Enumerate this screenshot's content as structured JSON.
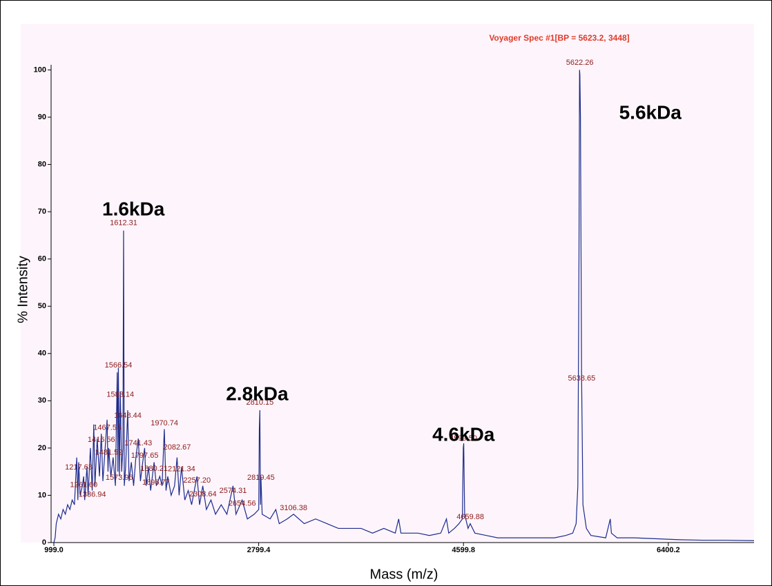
{
  "chart_data": {
    "type": "line",
    "title": "Voyager Spec #1[BP = 5623.2, 3448]",
    "title_color": "#e03a2a",
    "x_label": "Mass (m/z)",
    "y_label": "% Intensity",
    "color": "#1c2a8c",
    "label_color": "#8b1a1a",
    "xlim": [
      999.0,
      7154
    ],
    "ylim": [
      0,
      104
    ],
    "xticks": [
      {
        "value": 999.0,
        "label": "999.0"
      },
      {
        "value": 2799.4,
        "label": "2799.4"
      },
      {
        "value": 4599.8,
        "label": "4599.8"
      },
      {
        "value": 6400.2,
        "label": "6400.2"
      }
    ],
    "yticks": [
      0,
      10,
      20,
      30,
      40,
      50,
      60,
      70,
      80,
      90,
      100
    ],
    "x": [
      999,
      1010,
      1020,
      1040,
      1060,
      1080,
      1100,
      1120,
      1140,
      1160,
      1180,
      1200,
      1210,
      1217,
      1230,
      1250,
      1261,
      1270,
      1290,
      1300,
      1320,
      1336,
      1350,
      1360,
      1380,
      1400,
      1416,
      1430,
      1450,
      1467,
      1475,
      1481,
      1500,
      1520,
      1540,
      1556,
      1562,
      1566,
      1575,
      1583,
      1595,
      1606,
      1612,
      1618,
      1630,
      1648,
      1660,
      1680,
      1700,
      1720,
      1741,
      1760,
      1780,
      1797,
      1810,
      1830,
      1850,
      1880,
      1900,
      1930,
      1950,
      1970,
      1985,
      2000,
      2030,
      2060,
      2082,
      2100,
      2121,
      2150,
      2180,
      2210,
      2257,
      2280,
      2308,
      2340,
      2380,
      2420,
      2470,
      2520,
      2574,
      2600,
      2654,
      2700,
      2760,
      2800,
      2805,
      2810,
      2815,
      2819,
      2830,
      2900,
      2950,
      2980,
      3050,
      3106,
      3200,
      3300,
      3400,
      3500,
      3600,
      3700,
      3800,
      3900,
      4000,
      4030,
      4050,
      4200,
      4300,
      4400,
      4450,
      4470,
      4520,
      4560,
      4590,
      4598,
      4602,
      4610,
      4640,
      4659,
      4700,
      4800,
      4900,
      5000,
      5100,
      5200,
      5300,
      5400,
      5500,
      5560,
      5590,
      5605,
      5615,
      5620,
      5623,
      5628,
      5638,
      5650,
      5680,
      5720,
      5850,
      5880,
      5890,
      5900,
      5950,
      6100,
      6300,
      6500,
      6700,
      6900,
      7154
    ],
    "values": [
      0,
      1,
      4,
      6,
      5,
      7,
      6,
      8,
      7,
      9,
      8,
      18,
      9,
      17,
      10,
      12,
      14,
      9,
      16,
      10,
      20,
      11,
      25,
      12,
      22,
      14,
      23,
      13,
      20,
      26,
      15,
      20,
      14,
      18,
      12,
      36,
      15,
      37,
      14,
      32,
      15,
      20,
      66,
      12,
      16,
      28,
      13,
      17,
      12,
      18,
      22,
      13,
      17,
      20,
      12,
      16,
      11,
      17,
      12,
      14,
      12,
      24,
      11,
      14,
      10,
      12,
      18,
      10,
      16,
      9,
      11,
      8,
      14,
      8,
      12,
      7,
      9,
      6,
      8,
      6,
      12,
      6,
      9,
      5,
      6,
      7,
      24,
      28,
      8,
      14,
      6,
      5,
      7,
      4,
      5,
      6,
      4,
      5,
      4,
      3,
      3,
      3,
      2,
      3,
      2,
      5,
      2,
      2,
      1.5,
      2,
      5,
      2,
      3,
      4,
      5,
      20,
      21,
      6,
      3,
      4,
      2,
      1.5,
      1,
      1,
      1,
      1,
      1,
      1,
      1.5,
      2,
      4,
      12,
      60,
      100,
      99,
      90,
      35,
      8,
      3,
      1.5,
      1,
      4,
      5,
      2,
      1,
      1,
      0.8,
      0.6,
      0.5,
      0.5,
      0.4
    ],
    "peak_labels": [
      {
        "x": 1612.31,
        "y": 67.6,
        "label": "1612.31"
      },
      {
        "x": 1566.54,
        "y": 37.5,
        "label": "1566.54"
      },
      {
        "x": 1583.14,
        "y": 31.3,
        "label": "1583.14"
      },
      {
        "x": 1648.44,
        "y": 26.8,
        "label": "1648.44"
      },
      {
        "x": 1467.53,
        "y": 24.3,
        "label": "1467.53"
      },
      {
        "x": 1416.56,
        "y": 21.7,
        "label": "1416.56"
      },
      {
        "x": 1481.52,
        "y": 19.0,
        "label": "1481.52"
      },
      {
        "x": 1217.63,
        "y": 15.9,
        "label": "1217.63"
      },
      {
        "x": 1573.96,
        "y": 13.7,
        "label": "1573.96"
      },
      {
        "x": 1261.6,
        "y": 12.2,
        "label": "1261.60"
      },
      {
        "x": 1336.94,
        "y": 10.1,
        "label": "1336.94"
      },
      {
        "x": 1970.74,
        "y": 25.2,
        "label": "1970.74"
      },
      {
        "x": 1741.43,
        "y": 21.0,
        "label": "1741.43"
      },
      {
        "x": 1797.65,
        "y": 18.4,
        "label": "1797.65"
      },
      {
        "x": 2082.67,
        "y": 20.1,
        "label": "2082.67"
      },
      {
        "x": 1880.21,
        "y": 15.6,
        "label": "1880.21"
      },
      {
        "x": 1896.77,
        "y": 12.7,
        "label": "1896.77"
      },
      {
        "x": 2121.34,
        "y": 15.5,
        "label": "2121.34"
      },
      {
        "x": 2257.2,
        "y": 13.1,
        "label": "2257.20"
      },
      {
        "x": 2308.64,
        "y": 10.2,
        "label": "2308.64"
      },
      {
        "x": 2574.31,
        "y": 10.9,
        "label": "2574.31"
      },
      {
        "x": 2654.56,
        "y": 8.2,
        "label": "2654.56"
      },
      {
        "x": 2810.15,
        "y": 29.6,
        "label": "2810.15"
      },
      {
        "x": 2819.45,
        "y": 13.7,
        "label": "2819.45"
      },
      {
        "x": 3106.38,
        "y": 7.3,
        "label": "3106.38"
      },
      {
        "x": 4599.5,
        "y": 22.0,
        "label": "4599.50"
      },
      {
        "x": 4659.88,
        "y": 5.4,
        "label": "4659.88"
      },
      {
        "x": 5622.26,
        "y": 101.5,
        "label": "5622.26"
      },
      {
        "x": 5638.65,
        "y": 34.7,
        "label": "5638.65"
      }
    ],
    "annotations": [
      {
        "text": "1.6kDa",
        "x": 1698,
        "y": 70.3
      },
      {
        "text": "2.8kDa",
        "x": 2786,
        "y": 31.2
      },
      {
        "text": "4.6kDa",
        "x": 4600,
        "y": 22.6
      },
      {
        "text": "5.6kDa",
        "x": 6242,
        "y": 90.7
      }
    ]
  }
}
